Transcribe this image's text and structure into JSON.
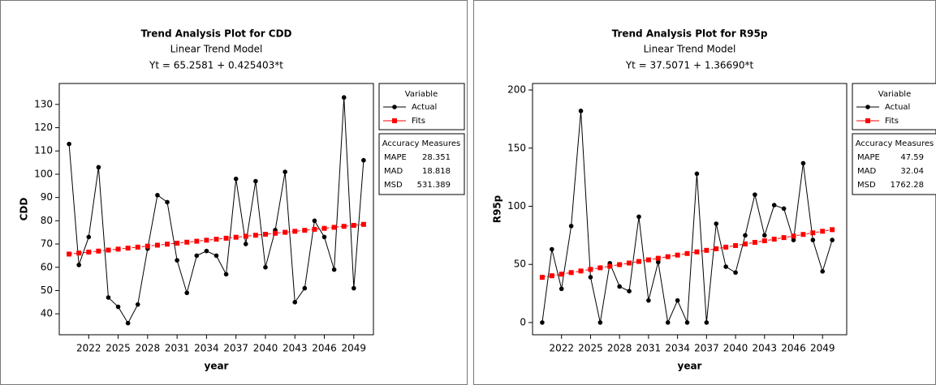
{
  "chart_data": [
    {
      "type": "line",
      "title": "Trend Analysis Plot for CDD",
      "subtitle": "Linear Trend Model",
      "equation": "Yt = 65.2581 + 0.425403*t",
      "xlabel": "year",
      "ylabel": "CDD",
      "x": [
        2020,
        2021,
        2022,
        2023,
        2024,
        2025,
        2026,
        2027,
        2028,
        2029,
        2030,
        2031,
        2032,
        2033,
        2034,
        2035,
        2036,
        2037,
        2038,
        2039,
        2040,
        2041,
        2042,
        2043,
        2044,
        2045,
        2046,
        2047,
        2048,
        2049,
        2050
      ],
      "series": [
        {
          "name": "Actual",
          "color": "#000000",
          "marker": "circle",
          "values": [
            113,
            61,
            73,
            103,
            47,
            43,
            36,
            44,
            68,
            91,
            88,
            63,
            49,
            65,
            67,
            65,
            57,
            98,
            70,
            97,
            60,
            76,
            101,
            45,
            51,
            80,
            73,
            59,
            133,
            51,
            106
          ]
        },
        {
          "name": "Fits",
          "color": "#ff0000",
          "marker": "square",
          "values": [
            65.68,
            66.11,
            66.53,
            66.96,
            67.39,
            67.81,
            68.24,
            68.66,
            69.09,
            69.51,
            69.94,
            70.36,
            70.79,
            71.21,
            71.64,
            72.06,
            72.49,
            72.92,
            73.34,
            73.77,
            74.19,
            74.62,
            75.04,
            75.47,
            75.89,
            76.32,
            76.74,
            77.17,
            77.6,
            78.02,
            78.45
          ]
        }
      ],
      "xlim": [
        2019,
        2051
      ],
      "ylim": [
        31,
        139
      ],
      "xticks": [
        2022,
        2025,
        2028,
        2031,
        2034,
        2037,
        2040,
        2043,
        2046,
        2049
      ],
      "yticks": [
        40,
        50,
        60,
        70,
        80,
        90,
        100,
        110,
        120,
        130
      ],
      "legend_title": "Variable",
      "accuracy": {
        "title": "Accuracy Measures",
        "rows": [
          [
            "MAPE",
            28.351
          ],
          [
            "MAD",
            18.818
          ],
          [
            "MSD",
            531.389
          ]
        ]
      }
    },
    {
      "type": "line",
      "title": "Trend Analysis Plot for R95p",
      "subtitle": "Linear Trend Model",
      "equation": "Yt = 37.5071 + 1.36690*t",
      "xlabel": "year",
      "ylabel": "R95p",
      "x": [
        2020,
        2021,
        2022,
        2023,
        2024,
        2025,
        2026,
        2027,
        2028,
        2029,
        2030,
        2031,
        2032,
        2033,
        2034,
        2035,
        2036,
        2037,
        2038,
        2039,
        2040,
        2041,
        2042,
        2043,
        2044,
        2045,
        2046,
        2047,
        2048,
        2049,
        2050
      ],
      "series": [
        {
          "name": "Actual",
          "color": "#000000",
          "marker": "circle",
          "values": [
            0,
            63,
            29,
            83,
            182,
            39,
            0,
            51,
            31,
            27,
            91,
            19,
            52,
            0,
            19,
            0,
            128,
            0,
            85,
            48,
            43,
            75,
            110,
            75,
            101,
            98,
            71,
            137,
            71,
            44,
            71
          ]
        },
        {
          "name": "Fits",
          "color": "#ff0000",
          "marker": "square",
          "values": [
            38.87,
            40.24,
            41.61,
            42.97,
            44.34,
            45.71,
            47.08,
            48.44,
            49.81,
            51.18,
            52.54,
            53.91,
            55.28,
            56.64,
            58.01,
            59.38,
            60.74,
            62.11,
            63.48,
            64.85,
            66.21,
            67.58,
            68.95,
            70.31,
            71.68,
            73.05,
            74.41,
            75.78,
            77.15,
            78.51,
            79.88
          ]
        }
      ],
      "xlim": [
        2019,
        2051.5
      ],
      "ylim": [
        -10.5,
        205.6
      ],
      "xticks": [
        2022,
        2025,
        2028,
        2031,
        2034,
        2037,
        2040,
        2043,
        2046,
        2049
      ],
      "yticks": [
        0,
        50,
        100,
        150,
        200
      ],
      "legend_title": "Variable",
      "accuracy": {
        "title": "Accuracy Measures",
        "rows": [
          [
            "MAPE",
            47.59
          ],
          [
            "MAD",
            32.04
          ],
          [
            "MSD",
            1762.28
          ]
        ]
      }
    }
  ]
}
